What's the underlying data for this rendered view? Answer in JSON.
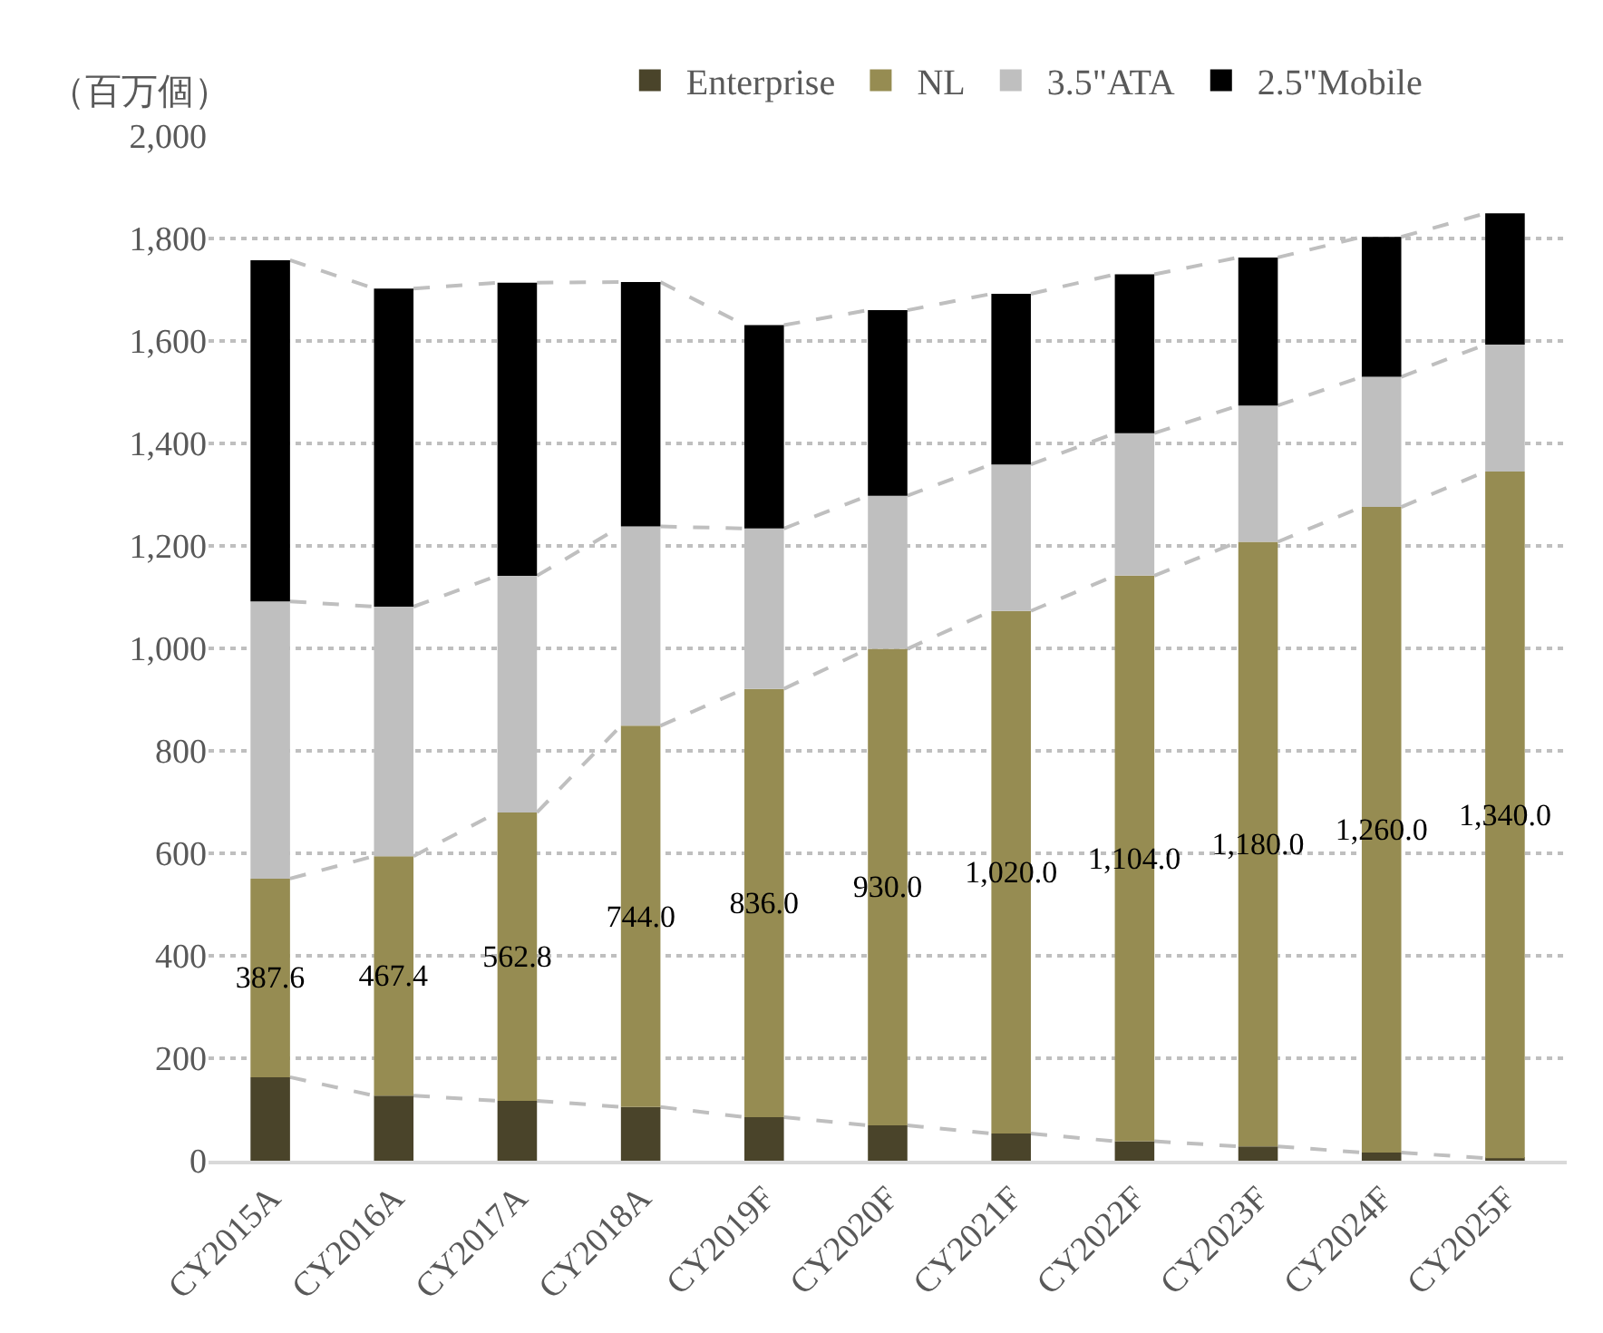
{
  "chart_data": {
    "type": "bar",
    "stacked": true,
    "ylabel": "（百万個）",
    "categories": [
      "CY2015A",
      "CY2016A",
      "CY2017A",
      "CY2018A",
      "CY2019F",
      "CY2020F",
      "CY2021F",
      "CY2022F",
      "CY2023F",
      "CY2024F",
      "CY2025F"
    ],
    "series": [
      {
        "name": "Enterprise",
        "color": "#4a442a",
        "values": [
          163,
          127,
          117,
          105,
          85,
          69,
          53,
          38,
          28,
          16,
          5
        ]
      },
      {
        "name": "NL",
        "color": "#968c52",
        "values": [
          387.6,
          467.4,
          562.8,
          744.0,
          836.0,
          930.0,
          1020.0,
          1104.0,
          1180.0,
          1260.0,
          1340.0
        ],
        "value_labels": [
          "387.6",
          "467.4",
          "562.8",
          "744.0",
          "836.0",
          "930.0",
          "1,020.0",
          "1,104.0",
          "1,180.0",
          "1,260.0",
          "1,340.0"
        ]
      },
      {
        "name": "3.5\"ATA",
        "color": "#bfbfbf",
        "values": [
          541,
          487,
          462,
          389,
          313,
          299,
          286,
          278,
          266,
          254,
          248
        ]
      },
      {
        "name": "2.5\"Mobile",
        "color": "#000000",
        "values": [
          666,
          621,
          572,
          477,
          397,
          362,
          333,
          310,
          289,
          273,
          256
        ]
      }
    ],
    "ylim": [
      0,
      2000
    ],
    "yticks": [
      {
        "value": 0,
        "label": "0"
      },
      {
        "value": 200,
        "label": "200"
      },
      {
        "value": 400,
        "label": "400"
      },
      {
        "value": 600,
        "label": "600"
      },
      {
        "value": 800,
        "label": "800"
      },
      {
        "value": 1000,
        "label": "1,000"
      },
      {
        "value": 1200,
        "label": "1,200"
      },
      {
        "value": 1400,
        "label": "1,400"
      },
      {
        "value": 1600,
        "label": "1,600"
      },
      {
        "value": 1800,
        "label": "1,800"
      },
      {
        "value": 2000,
        "label": "2,000"
      }
    ],
    "grid": "y",
    "legend": "top"
  }
}
